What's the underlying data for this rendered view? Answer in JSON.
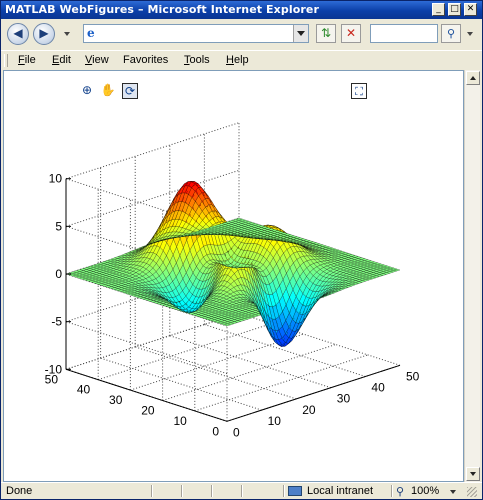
{
  "window": {
    "title": "MATLAB WebFigures – Microsoft Internet Explorer",
    "minimize_label": "_",
    "maximize_label": "□",
    "close_label": "✕"
  },
  "toolbar": {
    "back_icon": "back-arrow-icon",
    "forward_icon": "forward-arrow-icon",
    "address_value": "",
    "search_value": ""
  },
  "menu": {
    "items": [
      {
        "underline": "F",
        "rest": "ile"
      },
      {
        "underline": "E",
        "rest": "dit"
      },
      {
        "underline": "V",
        "rest": "iew"
      },
      {
        "underline": "",
        "rest": "Favorites"
      },
      {
        "underline": "T",
        "rest": "ools"
      },
      {
        "underline": "H",
        "rest": "elp"
      }
    ]
  },
  "figure_toolbar": {
    "zoom_icon": "zoom-in-icon",
    "pan_icon": "pan-hand-icon",
    "rotate_icon": "rotate-3d-icon",
    "fullscreen_icon": "fullscreen-icon"
  },
  "chart_data": {
    "type": "surface",
    "function": "peaks",
    "xlim": [
      0,
      50
    ],
    "ylim": [
      0,
      50
    ],
    "zlim": [
      -10,
      10
    ],
    "x_ticks": [
      "0",
      "10",
      "20",
      "30",
      "40",
      "50"
    ],
    "y_ticks": [
      "0",
      "10",
      "20",
      "30",
      "40",
      "50"
    ],
    "z_ticks": [
      "-10",
      "-5",
      "0",
      "5",
      "10"
    ],
    "grid": true,
    "colormap": "jet",
    "z_range_values": {
      "max": 8.1,
      "min": -6.5
    }
  },
  "status": {
    "left": "Done",
    "zone": "Local intranet",
    "zoom": "100%"
  }
}
